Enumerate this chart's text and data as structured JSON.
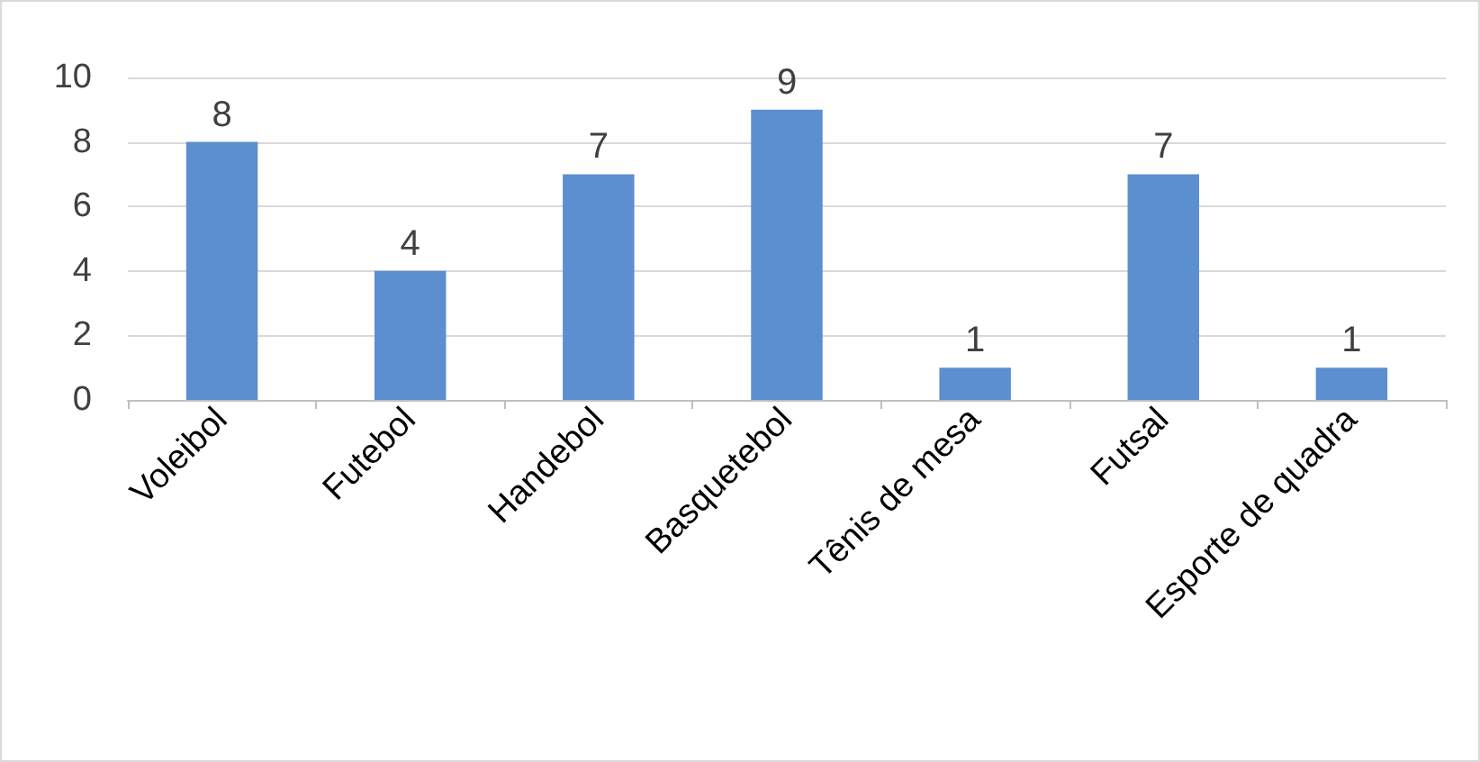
{
  "chart_data": {
    "type": "bar",
    "categories": [
      "Voleibol",
      "Futebol",
      "Handebol",
      "Basquetebol",
      "Tênis de mesa",
      "Futsal",
      "Esporte de quadra"
    ],
    "values": [
      8,
      4,
      7,
      9,
      1,
      7,
      1
    ],
    "color": "#5b8fd0",
    "ylim": [
      0,
      10
    ],
    "yticks": [
      0,
      2,
      4,
      6,
      8,
      10
    ],
    "grid": "y",
    "data_labels": true
  }
}
